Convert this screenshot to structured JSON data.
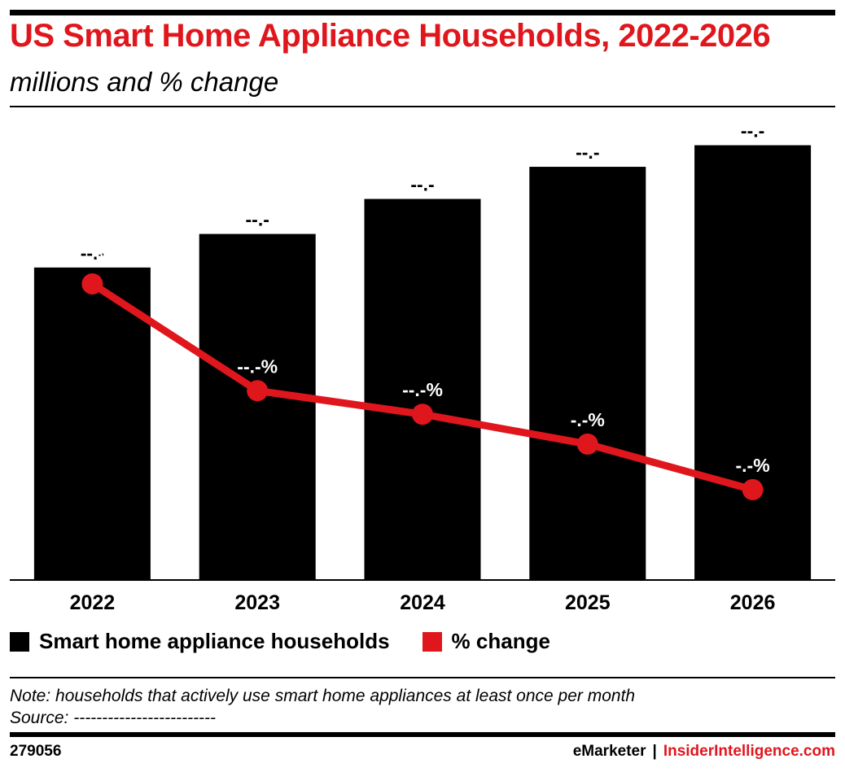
{
  "header": {
    "title": "US Smart Home Appliance Households, 2022-2026",
    "subtitle": "millions and % change"
  },
  "legend": {
    "bars_label": "Smart home appliance households",
    "line_label": "% change"
  },
  "notes": {
    "note": "Note: households that actively use smart home appliances at least once per month",
    "source": "Source: -------------------------"
  },
  "footer": {
    "id": "279056",
    "brand1": "eMarketer",
    "separator": "|",
    "brand2": "InsiderIntelligence.com"
  },
  "colors": {
    "bar": "#000000",
    "line": "#e0161d",
    "accent": "#e0161d"
  },
  "chart_data": {
    "type": "bar",
    "title": "US Smart Home Appliance Households, 2022-2026",
    "subtitle": "millions and % change",
    "categories": [
      "2022",
      "2023",
      "2024",
      "2025",
      "2026"
    ],
    "series": [
      {
        "name": "Smart home appliance households",
        "type": "bar",
        "values": [
          65,
          72,
          79.3,
          86,
          90.5
        ],
        "labels": [
          "--.-",
          "--.-",
          "--.-",
          "--.-",
          "--.-"
        ]
      },
      {
        "name": "% change",
        "type": "line",
        "values": [
          17.8,
          11.0,
          9.5,
          7.6,
          4.7
        ],
        "labels": [
          "--.-%",
          "--.-%",
          "--.-%",
          "-.-%",
          "-.-%"
        ]
      }
    ],
    "ylim": [
      0,
      95
    ],
    "line_ylim": [
      -1,
      28
    ],
    "grid": false,
    "legend_position": "bottom-left"
  }
}
